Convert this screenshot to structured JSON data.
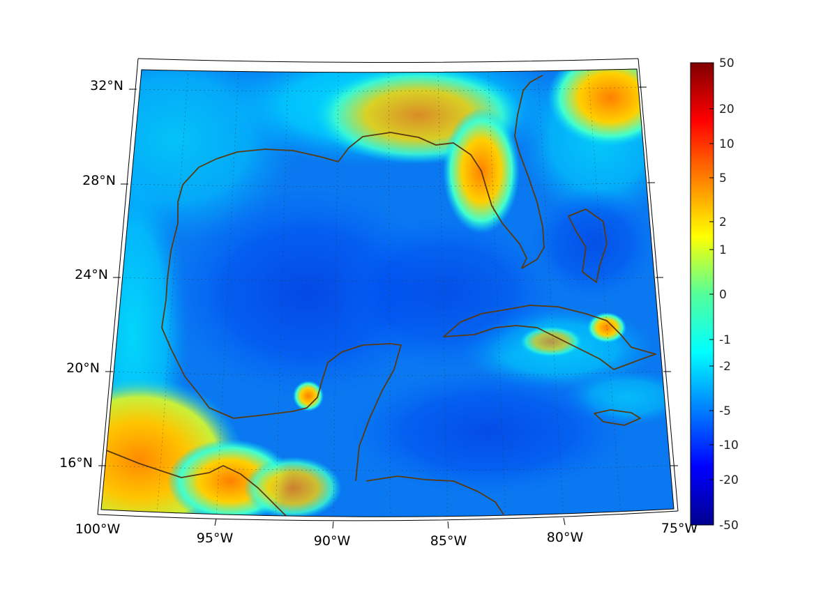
{
  "map": {
    "longitude_labels": [
      "100°W",
      "95°W",
      "90°W",
      "85°W",
      "80°W",
      "75°W"
    ],
    "latitude_labels": [
      "32°N",
      "28°N",
      "24°N",
      "20°N",
      "16°N"
    ]
  },
  "colorbar": {
    "tick_labels": [
      "50",
      "20",
      "10",
      "5",
      "2",
      "1",
      "0",
      "-1",
      "-2",
      "-5",
      "-10",
      "-20",
      "-50"
    ]
  },
  "colors": {
    "coastline": "#5a3a0e",
    "colormap": "jet"
  }
}
